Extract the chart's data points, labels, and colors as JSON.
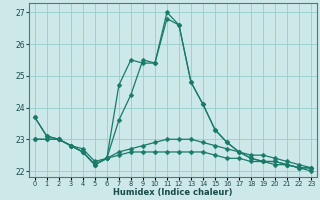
{
  "xlabel": "Humidex (Indice chaleur)",
  "background_color": "#cce8e8",
  "grid_color": "#99cccc",
  "line_color": "#1a7a6a",
  "hours": [
    0,
    1,
    2,
    3,
    4,
    5,
    6,
    7,
    8,
    9,
    10,
    11,
    12,
    13,
    14,
    15,
    16,
    17,
    18,
    19,
    20,
    21,
    22,
    23
  ],
  "y_peak": [
    23.7,
    23.1,
    23.0,
    22.8,
    22.6,
    22.2,
    22.4,
    24.7,
    25.5,
    25.4,
    25.4,
    27.0,
    26.6,
    24.8,
    24.1,
    23.3,
    22.9,
    22.6,
    22.4,
    22.3,
    22.3,
    22.2,
    22.1,
    22.1
  ],
  "y_mid": [
    23.7,
    23.1,
    23.0,
    22.8,
    22.6,
    22.2,
    22.4,
    23.6,
    24.4,
    25.5,
    25.4,
    26.8,
    26.6,
    24.8,
    24.1,
    23.3,
    22.9,
    22.6,
    22.4,
    22.3,
    22.3,
    22.2,
    22.1,
    22.1
  ],
  "y_lower": [
    23.0,
    23.0,
    23.0,
    22.8,
    22.6,
    22.2,
    22.4,
    22.6,
    22.7,
    22.8,
    22.9,
    23.0,
    23.0,
    23.0,
    22.9,
    22.8,
    22.7,
    22.6,
    22.5,
    22.5,
    22.4,
    22.3,
    22.2,
    22.1
  ],
  "y_flat": [
    23.0,
    23.0,
    23.0,
    22.8,
    22.7,
    22.3,
    22.4,
    22.5,
    22.6,
    22.6,
    22.6,
    22.6,
    22.6,
    22.6,
    22.6,
    22.5,
    22.4,
    22.4,
    22.3,
    22.3,
    22.2,
    22.2,
    22.1,
    22.0
  ],
  "ylim": [
    21.8,
    27.3
  ],
  "yticks": [
    22,
    23,
    24,
    25,
    26,
    27
  ],
  "xlim": [
    -0.5,
    23.5
  ]
}
